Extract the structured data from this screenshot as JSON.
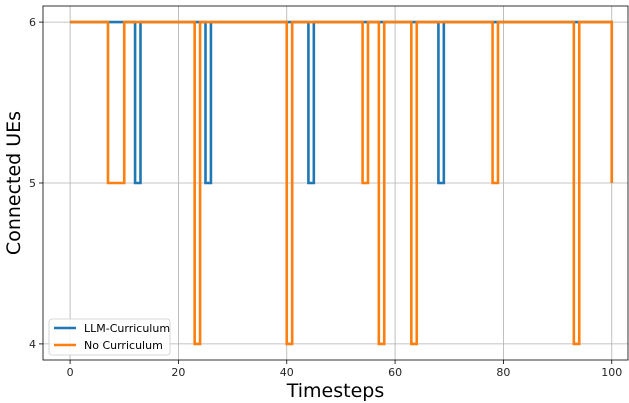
{
  "chart_data": {
    "type": "line",
    "step": "post",
    "title": "",
    "xlabel": "Timesteps",
    "ylabel": "Connected UEs",
    "xlim": [
      -5,
      103
    ],
    "ylim": [
      3.9,
      6.1
    ],
    "xticks": [
      0,
      20,
      40,
      60,
      80,
      100
    ],
    "yticks": [
      4,
      5,
      6
    ],
    "grid": true,
    "legend": "lower-left",
    "series": [
      {
        "name": "LLM-Curriculum",
        "color": "#1f77b4",
        "points": [
          [
            0,
            6
          ],
          [
            12,
            6
          ],
          [
            12,
            5
          ],
          [
            13,
            5
          ],
          [
            13,
            6
          ],
          [
            25,
            6
          ],
          [
            25,
            5
          ],
          [
            26,
            5
          ],
          [
            26,
            6
          ],
          [
            44,
            6
          ],
          [
            44,
            5
          ],
          [
            45,
            5
          ],
          [
            45,
            6
          ],
          [
            68,
            6
          ],
          [
            68,
            5
          ],
          [
            69,
            5
          ],
          [
            69,
            6
          ],
          [
            100,
            6
          ],
          [
            100,
            5
          ]
        ]
      },
      {
        "name": "No Curriculum",
        "color": "#ff7f0e",
        "points": [
          [
            0,
            6
          ],
          [
            7,
            6
          ],
          [
            7,
            5
          ],
          [
            10,
            5
          ],
          [
            10,
            6
          ],
          [
            23,
            6
          ],
          [
            23,
            4
          ],
          [
            24,
            4
          ],
          [
            24,
            6
          ],
          [
            40,
            6
          ],
          [
            40,
            4
          ],
          [
            41,
            4
          ],
          [
            41,
            6
          ],
          [
            54,
            6
          ],
          [
            54,
            5
          ],
          [
            55,
            5
          ],
          [
            55,
            6
          ],
          [
            57,
            6
          ],
          [
            57,
            4
          ],
          [
            58,
            4
          ],
          [
            58,
            6
          ],
          [
            63,
            6
          ],
          [
            63,
            4
          ],
          [
            64,
            4
          ],
          [
            64,
            6
          ],
          [
            78,
            6
          ],
          [
            78,
            5
          ],
          [
            79,
            5
          ],
          [
            79,
            6
          ],
          [
            93,
            6
          ],
          [
            93,
            4
          ],
          [
            94,
            4
          ],
          [
            94,
            6
          ],
          [
            100,
            6
          ],
          [
            100,
            5
          ]
        ]
      }
    ]
  }
}
